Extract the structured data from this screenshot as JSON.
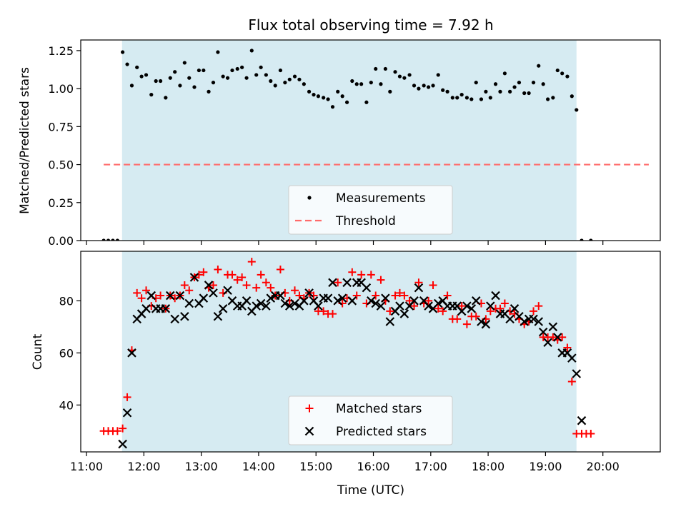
{
  "title": "Flux total observing time = 7.92 h",
  "colors": {
    "shade": "#add8e6",
    "matched": "#ff0000",
    "predicted": "#000000",
    "threshold": "#ff6b6b",
    "measurement": "#000000"
  },
  "chart_data": [
    {
      "type": "scatter",
      "panel": "top",
      "title": "Flux total observing time = 7.92 h",
      "xlabel": "",
      "ylabel": "Matched/Predicted stars",
      "ylim": [
        0,
        1.32
      ],
      "xlim": [
        10.9,
        21.0
      ],
      "yticks": [
        "0.00",
        "0.25",
        "0.50",
        "0.75",
        "1.00",
        "1.25"
      ],
      "observing_window": [
        11.62,
        19.54
      ],
      "legend": {
        "placement": "lower center",
        "entries": [
          "Measurements",
          "Threshold"
        ]
      },
      "threshold": {
        "name": "Threshold",
        "value": 0.5,
        "x_range": [
          11.3,
          20.8
        ],
        "style": "dashed"
      },
      "series": [
        {
          "name": "Measurements",
          "x": [
            11.3,
            11.38,
            11.46,
            11.54,
            11.63,
            11.71,
            11.79,
            11.88,
            11.96,
            12.04,
            12.13,
            12.21,
            12.29,
            12.38,
            12.46,
            12.54,
            12.63,
            12.71,
            12.79,
            12.88,
            12.96,
            13.04,
            13.13,
            13.21,
            13.29,
            13.38,
            13.46,
            13.54,
            13.63,
            13.71,
            13.79,
            13.88,
            13.96,
            14.04,
            14.13,
            14.21,
            14.29,
            14.38,
            14.46,
            14.54,
            14.63,
            14.71,
            14.79,
            14.88,
            14.96,
            15.04,
            15.13,
            15.21,
            15.29,
            15.38,
            15.46,
            15.54,
            15.63,
            15.71,
            15.79,
            15.88,
            15.96,
            16.04,
            16.13,
            16.21,
            16.29,
            16.38,
            16.46,
            16.54,
            16.63,
            16.71,
            16.79,
            16.88,
            16.96,
            17.04,
            17.13,
            17.21,
            17.29,
            17.38,
            17.46,
            17.54,
            17.63,
            17.71,
            17.79,
            17.88,
            17.96,
            18.04,
            18.13,
            18.21,
            18.29,
            18.38,
            18.46,
            18.54,
            18.63,
            18.71,
            18.79,
            18.88,
            18.96,
            19.04,
            19.13,
            19.21,
            19.29,
            19.38,
            19.46,
            19.54,
            19.63,
            19.79
          ],
          "y": [
            0.0,
            0.0,
            0.0,
            0.0,
            1.24,
            1.16,
            1.02,
            1.14,
            1.08,
            1.09,
            0.96,
            1.05,
            1.05,
            0.94,
            1.07,
            1.11,
            1.02,
            1.17,
            1.07,
            1.01,
            1.12,
            1.12,
            0.98,
            1.04,
            1.24,
            1.08,
            1.07,
            1.12,
            1.13,
            1.14,
            1.07,
            1.25,
            1.09,
            1.14,
            1.09,
            1.05,
            1.02,
            1.12,
            1.04,
            1.06,
            1.08,
            1.06,
            1.03,
            0.98,
            0.96,
            0.95,
            0.94,
            0.93,
            0.88,
            0.98,
            0.95,
            0.91,
            1.05,
            1.03,
            1.03,
            0.91,
            1.04,
            1.13,
            1.03,
            1.13,
            0.98,
            1.11,
            1.08,
            1.07,
            1.09,
            1.02,
            1.0,
            1.02,
            1.01,
            1.02,
            1.09,
            0.99,
            0.98,
            0.94,
            0.94,
            0.96,
            0.94,
            0.93,
            1.04,
            0.93,
            0.98,
            0.94,
            1.03,
            0.98,
            1.1,
            0.98,
            1.01,
            1.04,
            0.97,
            0.97,
            1.04,
            1.15,
            1.03,
            0.93,
            0.94,
            1.12,
            1.1,
            1.08,
            0.95,
            0.86,
            0.0,
            0.0
          ]
        }
      ]
    },
    {
      "type": "scatter",
      "panel": "bottom",
      "xlabel": "Time (UTC)",
      "ylabel": "Count",
      "ylim": [
        22,
        99
      ],
      "xlim": [
        10.9,
        21.0
      ],
      "yticks": [
        "40",
        "60",
        "80"
      ],
      "xticks": [
        "11:00",
        "12:00",
        "13:00",
        "14:00",
        "15:00",
        "16:00",
        "17:00",
        "18:00",
        "19:00",
        "20:00"
      ],
      "observing_window": [
        11.62,
        19.54
      ],
      "legend": {
        "placement": "lower center",
        "entries": [
          "Matched stars",
          "Predicted stars"
        ]
      },
      "series": [
        {
          "name": "Matched stars",
          "marker": "plus",
          "x": [
            11.3,
            11.38,
            11.46,
            11.54,
            11.63,
            11.71,
            11.79,
            11.88,
            11.96,
            12.04,
            12.13,
            12.21,
            12.29,
            12.38,
            12.46,
            12.54,
            12.63,
            12.71,
            12.79,
            12.88,
            12.96,
            13.04,
            13.13,
            13.21,
            13.29,
            13.38,
            13.46,
            13.54,
            13.63,
            13.71,
            13.79,
            13.88,
            13.96,
            14.04,
            14.13,
            14.21,
            14.29,
            14.38,
            14.46,
            14.54,
            14.63,
            14.71,
            14.79,
            14.88,
            14.96,
            15.04,
            15.13,
            15.21,
            15.29,
            15.38,
            15.46,
            15.54,
            15.63,
            15.71,
            15.79,
            15.88,
            15.96,
            16.04,
            16.13,
            16.21,
            16.29,
            16.38,
            16.46,
            16.54,
            16.63,
            16.71,
            16.79,
            16.88,
            16.96,
            17.04,
            17.13,
            17.21,
            17.29,
            17.38,
            17.46,
            17.54,
            17.63,
            17.71,
            17.79,
            17.88,
            17.96,
            18.04,
            18.13,
            18.21,
            18.29,
            18.38,
            18.46,
            18.54,
            18.63,
            18.71,
            18.79,
            18.88,
            18.96,
            19.04,
            19.13,
            19.21,
            19.29,
            19.38,
            19.46,
            19.54,
            19.63,
            19.71,
            19.79
          ],
          "y": [
            30,
            30,
            30,
            30,
            31,
            43,
            61,
            83,
            81,
            84,
            78,
            81,
            82,
            77,
            82,
            81,
            82,
            86,
            84,
            89,
            90,
            91,
            85,
            86,
            92,
            83,
            90,
            90,
            88,
            89,
            86,
            95,
            85,
            90,
            87,
            85,
            82,
            92,
            83,
            80,
            84,
            82,
            81,
            83,
            82,
            76,
            76,
            75,
            75,
            87,
            79,
            81,
            91,
            82,
            90,
            79,
            90,
            82,
            88,
            80,
            76,
            82,
            83,
            82,
            80,
            78,
            87,
            79,
            80,
            86,
            77,
            76,
            82,
            73,
            73,
            78,
            71,
            74,
            74,
            79,
            73,
            76,
            77,
            77,
            79,
            76,
            75,
            73,
            71,
            72,
            76,
            78,
            66,
            66,
            66,
            65,
            66,
            62,
            49,
            29,
            29,
            29,
            29
          ]
        },
        {
          "name": "Predicted stars",
          "marker": "x",
          "x": [
            11.63,
            11.71,
            11.79,
            11.88,
            11.96,
            12.04,
            12.13,
            12.21,
            12.29,
            12.38,
            12.46,
            12.54,
            12.63,
            12.71,
            12.79,
            12.88,
            12.96,
            13.04,
            13.13,
            13.21,
            13.29,
            13.38,
            13.46,
            13.54,
            13.63,
            13.71,
            13.79,
            13.88,
            13.96,
            14.04,
            14.13,
            14.21,
            14.29,
            14.38,
            14.46,
            14.54,
            14.63,
            14.71,
            14.79,
            14.88,
            14.96,
            15.04,
            15.13,
            15.21,
            15.29,
            15.38,
            15.46,
            15.54,
            15.63,
            15.71,
            15.79,
            15.88,
            15.96,
            16.04,
            16.13,
            16.21,
            16.29,
            16.38,
            16.46,
            16.54,
            16.63,
            16.71,
            16.79,
            16.88,
            16.96,
            17.04,
            17.13,
            17.21,
            17.29,
            17.38,
            17.46,
            17.54,
            17.63,
            17.71,
            17.79,
            17.88,
            17.96,
            18.04,
            18.13,
            18.21,
            18.29,
            18.38,
            18.46,
            18.54,
            18.63,
            18.71,
            18.79,
            18.88,
            18.96,
            19.04,
            19.13,
            19.21,
            19.29,
            19.38,
            19.46,
            19.54,
            19.63
          ],
          "y": [
            25,
            37,
            60,
            73,
            75,
            77,
            82,
            77,
            77,
            77,
            82,
            73,
            82,
            74,
            79,
            89,
            79,
            81,
            86,
            83,
            74,
            77,
            84,
            80,
            78,
            78,
            80,
            76,
            78,
            79,
            78,
            81,
            82,
            82,
            79,
            78,
            79,
            78,
            80,
            83,
            80,
            78,
            81,
            81,
            87,
            80,
            81,
            87,
            80,
            87,
            87,
            85,
            80,
            79,
            78,
            81,
            72,
            76,
            78,
            75,
            78,
            80,
            85,
            80,
            78,
            77,
            79,
            80,
            78,
            78,
            78,
            76,
            78,
            77,
            80,
            72,
            71,
            78,
            82,
            75,
            75,
            73,
            77,
            74,
            72,
            73,
            73,
            72,
            68,
            64,
            70,
            66,
            60,
            60,
            58,
            52,
            34
          ]
        }
      ]
    }
  ]
}
